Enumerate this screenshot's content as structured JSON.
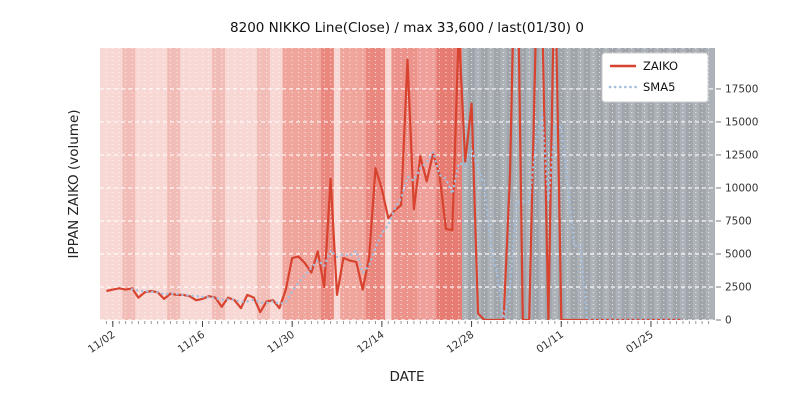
{
  "chart_data": {
    "type": "line",
    "title": "8200 NIKKO Line(Close) / max 33,600 / last(01/30) 0",
    "xlabel": "DATE",
    "ylabel": "IPPAN ZAIKO (volume)",
    "ylim": [
      0,
      20600
    ],
    "yticks": [
      0,
      2500,
      5000,
      7500,
      10000,
      12500,
      15000,
      17500
    ],
    "xtick_labels": [
      "11/02",
      "11/16",
      "11/30",
      "12/14",
      "12/28",
      "01/11",
      "01/25"
    ],
    "x_start": "11/01",
    "x_days": 95,
    "grid": true,
    "legend": {
      "position": "upper right",
      "entries": [
        "ZAIKO",
        "SMA5"
      ]
    },
    "series": [
      {
        "name": "ZAIKO",
        "color": "#d8432f",
        "style": "solid",
        "start_date": "11/01",
        "last_date": "01/30",
        "values": [
          2200,
          2300,
          2400,
          2300,
          2400,
          1700,
          2100,
          2200,
          2100,
          1600,
          2000,
          1900,
          1900,
          1800,
          1500,
          1600,
          1800,
          1700,
          1000,
          1700,
          1500,
          900,
          1900,
          1700,
          600,
          1400,
          1500,
          900,
          2300,
          4700,
          4800,
          4300,
          3600,
          5200,
          2500,
          10700,
          1900,
          4700,
          4500,
          4400,
          2300,
          4700,
          11500,
          9900,
          7700,
          8300,
          8700,
          19700,
          8400,
          12400,
          10500,
          12600,
          11000,
          6900,
          6800,
          22000,
          12000,
          16400,
          500,
          0,
          0,
          0,
          0,
          11000,
          33600,
          0,
          0,
          21000,
          24000,
          0,
          28000,
          0,
          0,
          0,
          0,
          0,
          0,
          0,
          0,
          0,
          0,
          0,
          0,
          0,
          0,
          0,
          0,
          0,
          0,
          0,
          0
        ]
      },
      {
        "name": "SMA5",
        "color": "#a3bedd",
        "style": "dotted",
        "window": 5,
        "derived_from": "ZAIKO"
      }
    ],
    "background": {
      "pink_region": {
        "from": "11/01",
        "to": "12/26",
        "color": "#f7d8d4"
      },
      "gray_region": {
        "from": "12/27",
        "to": "axis_end",
        "color": "#adb2b8"
      },
      "bands": [
        {
          "from": "11/29",
          "to": "12/04",
          "color": "#efa49c"
        },
        {
          "from": "12/05",
          "to": "12/06",
          "color": "#ea877e"
        },
        {
          "from": "12/08",
          "to": "12/11",
          "color": "#efa49c"
        },
        {
          "from": "12/12",
          "to": "12/14",
          "color": "#ea877e"
        },
        {
          "from": "12/16",
          "to": "12/19",
          "color": "#ec938b"
        },
        {
          "from": "12/20",
          "to": "12/22",
          "color": "#efa09a"
        },
        {
          "from": "12/23",
          "to": "12/26",
          "color": "#e67c72"
        }
      ]
    }
  }
}
